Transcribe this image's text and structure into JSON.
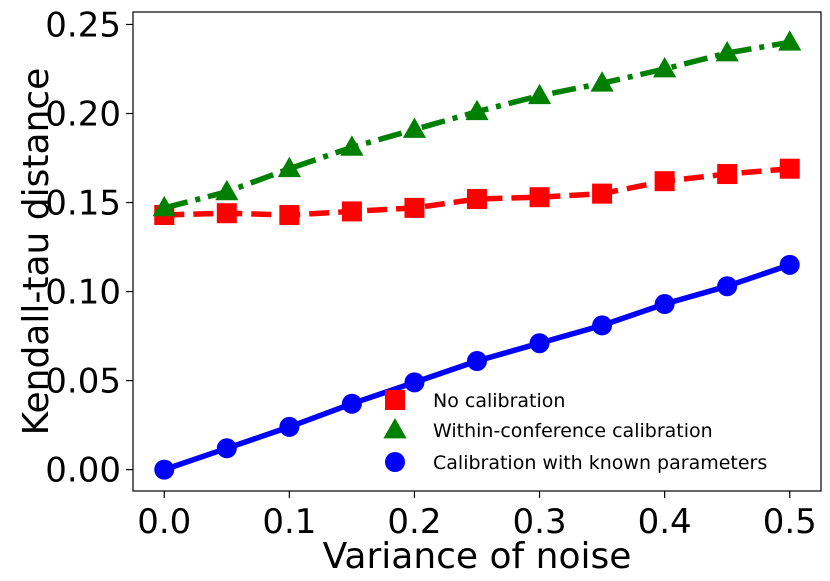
{
  "chart_data": {
    "type": "line",
    "xlabel": "Variance of noise",
    "ylabel": "Kendall-tau distance",
    "xlim": [
      -0.025,
      0.525
    ],
    "ylim": [
      -0.012,
      0.257
    ],
    "xticks": [
      0.0,
      0.1,
      0.2,
      0.3,
      0.4,
      0.5
    ],
    "xtick_labels": [
      "0.0",
      "0.1",
      "0.2",
      "0.3",
      "0.4",
      "0.5"
    ],
    "yticks": [
      0.0,
      0.05,
      0.1,
      0.15,
      0.2,
      0.25
    ],
    "ytick_labels": [
      "0.00",
      "0.05",
      "0.10",
      "0.15",
      "0.20",
      "0.25"
    ],
    "x": [
      0.0,
      0.05,
      0.1,
      0.15,
      0.2,
      0.25,
      0.3,
      0.35,
      0.4,
      0.45,
      0.5
    ],
    "series": [
      {
        "name": "No calibration",
        "color": "#ff0000",
        "marker": "square",
        "linestyle": "dashed",
        "values": [
          0.143,
          0.144,
          0.143,
          0.145,
          0.147,
          0.152,
          0.153,
          0.155,
          0.162,
          0.166,
          0.169
        ]
      },
      {
        "name": "Within-conference calibration",
        "color": "#008000",
        "marker": "triangle",
        "linestyle": "dashdot",
        "values": [
          0.147,
          0.156,
          0.169,
          0.181,
          0.191,
          0.201,
          0.21,
          0.217,
          0.225,
          0.234,
          0.24
        ]
      },
      {
        "name": "Calibration with known parameters",
        "color": "#0000ff",
        "marker": "circle",
        "linestyle": "solid",
        "values": [
          0.0,
          0.012,
          0.024,
          0.037,
          0.049,
          0.061,
          0.071,
          0.081,
          0.093,
          0.103,
          0.115
        ]
      }
    ],
    "legend_position": "lower-right",
    "grid": false
  }
}
